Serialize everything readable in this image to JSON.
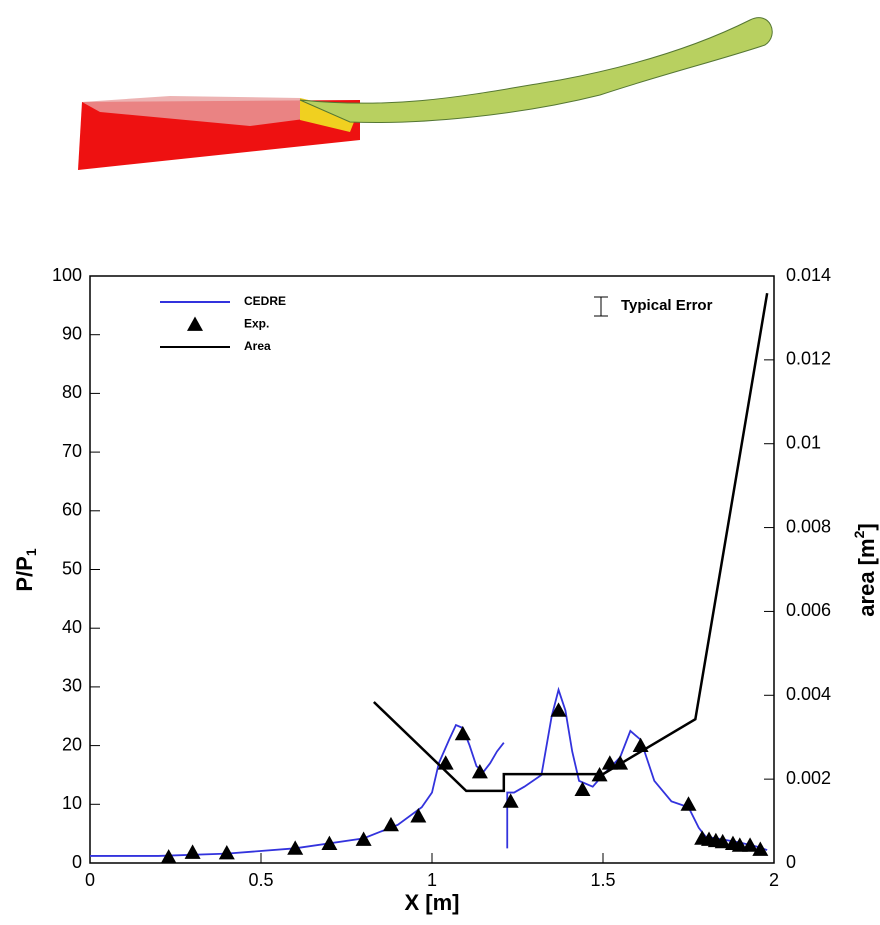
{
  "chart_data": {
    "type": "line",
    "xlabel": "X [m]",
    "ylabel": {
      "text": "P/P",
      "sub": "1"
    },
    "y2label": {
      "text": "area [m",
      "sup": "2",
      "end": "]"
    },
    "xlim": [
      0,
      2
    ],
    "xticks": [
      0,
      0.5,
      1,
      1.5,
      2
    ],
    "ylim": [
      0,
      100
    ],
    "yticks": [
      0,
      10,
      20,
      30,
      40,
      50,
      60,
      70,
      80,
      90,
      100
    ],
    "y2lim": [
      0,
      0.014
    ],
    "y2ticks": [
      0,
      0.002,
      0.004,
      0.006,
      0.008,
      0.01,
      0.012,
      0.014
    ],
    "annotation": "Typical Error",
    "series": [
      {
        "name": "CEDRE",
        "color": "#3333dd",
        "style": "line",
        "x": [
          0,
          0.2,
          0.4,
          0.6,
          0.8,
          0.9,
          0.97,
          1.0,
          1.02,
          1.05,
          1.07,
          1.09,
          1.11,
          1.13,
          1.15,
          1.17,
          1.19,
          1.21,
          null,
          1.22,
          1.22,
          1.24,
          1.27,
          1.32,
          1.35,
          1.37,
          1.39,
          1.41,
          1.43,
          1.47,
          1.5,
          1.55,
          1.58,
          1.61,
          1.65,
          1.7,
          1.75,
          1.78,
          1.8,
          1.85,
          1.9,
          1.95,
          1.98
        ],
        "values": [
          1.2,
          1.2,
          1.6,
          2.5,
          4.2,
          6.5,
          9.5,
          12,
          17,
          21,
          23.5,
          23,
          20,
          16.5,
          15.5,
          17,
          19,
          20.5,
          null,
          2.5,
          12,
          12,
          13,
          15,
          25,
          29.5,
          26,
          19,
          14,
          13,
          15,
          18,
          22.5,
          21,
          14,
          10.5,
          9.5,
          6,
          4.5,
          4,
          3.5,
          2.8,
          2.2
        ]
      },
      {
        "name": "Exp.",
        "color": "#000000",
        "style": "marker",
        "x": [
          0.23,
          0.3,
          0.4,
          0.6,
          0.7,
          0.8,
          0.88,
          0.96,
          1.04,
          1.09,
          1.14,
          1.23,
          1.37,
          1.44,
          1.49,
          1.52,
          1.55,
          1.61,
          1.75,
          1.79,
          1.81,
          1.83,
          1.85,
          1.88,
          1.9,
          1.93,
          1.96
        ],
        "values": [
          1,
          1.8,
          1.7,
          2.5,
          3.3,
          4,
          6.5,
          8,
          17,
          22,
          15.5,
          10.5,
          26,
          12.5,
          15,
          17,
          17,
          20,
          10,
          4.2,
          4,
          3.8,
          3.6,
          3.3,
          3,
          3,
          2.3
        ]
      },
      {
        "name": "Area",
        "color": "#000000",
        "style": "line",
        "axis": "y2",
        "x": [
          0.83,
          1.1,
          1.21,
          1.21,
          1.5,
          1.77,
          1.98
        ],
        "values": [
          0.00384,
          0.00172,
          0.00172,
          0.00212,
          0.00212,
          0.00343,
          0.01359
        ]
      }
    ]
  }
}
